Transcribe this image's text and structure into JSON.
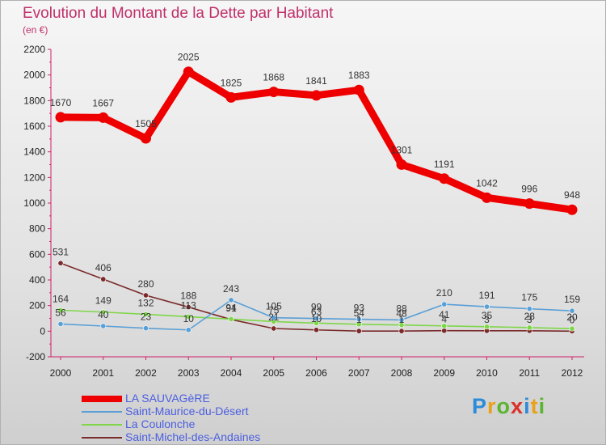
{
  "chart_data": {
    "type": "line",
    "title": "Evolution du Montant de la Dette par Habitant",
    "subtitle": "(en €)",
    "x": [
      "2000",
      "2001",
      "2002",
      "2003",
      "2004",
      "2005",
      "2006",
      "2007",
      "2008",
      "2009",
      "2010",
      "2011",
      "2012"
    ],
    "ylim": [
      -200,
      2200
    ],
    "yticks": [
      -200,
      0,
      200,
      400,
      600,
      800,
      1000,
      1200,
      1400,
      1600,
      1800,
      2000,
      2200
    ],
    "grid": false,
    "legend_position": "bottom-left",
    "series": [
      {
        "name": "LA SAUVAGèRE",
        "color": "#ee0000",
        "values": [
          1670,
          1667,
          1505,
          2025,
          1825,
          1868,
          1841,
          1883,
          1301,
          1191,
          1042,
          996,
          948
        ],
        "labels": [
          "1670",
          "1667",
          "1505",
          "2025",
          "1825",
          "1868",
          "1841",
          "1883",
          "1301",
          "1191",
          "1042",
          "996",
          "948"
        ]
      },
      {
        "name": "Saint-Maurice-du-Désert",
        "color": "#5a9fd6",
        "values": [
          56,
          40,
          23,
          10,
          243,
          105,
          99,
          93,
          88,
          210,
          191,
          175,
          159
        ],
        "labels": [
          "56",
          "40",
          "23",
          "10",
          "243",
          "105",
          "99",
          "93",
          "88",
          "210",
          "191",
          "175",
          "159"
        ]
      },
      {
        "name": "La Coulonche",
        "color": "#7fd64a",
        "values": [
          164,
          149,
          132,
          113,
          94,
          75,
          63,
          54,
          48,
          41,
          35,
          28,
          20
        ],
        "labels": [
          "164",
          "149",
          "132",
          "113",
          "94",
          "75",
          "63",
          "54",
          "48",
          "41",
          "35",
          "28",
          "20"
        ]
      },
      {
        "name": "Saint-Michel-des-Andaines",
        "color": "#7a2a2a",
        "values": [
          531,
          406,
          280,
          188,
          91,
          21,
          10,
          1,
          1,
          4,
          3,
          3,
          0
        ],
        "labels": [
          "531",
          "406",
          "280",
          "188",
          "91",
          "21",
          "10",
          "1",
          "1",
          "4",
          "3",
          "3",
          "0"
        ]
      }
    ]
  },
  "logo": {
    "parts": [
      "P",
      "r",
      "o",
      "x",
      "i",
      "t",
      "i"
    ]
  }
}
